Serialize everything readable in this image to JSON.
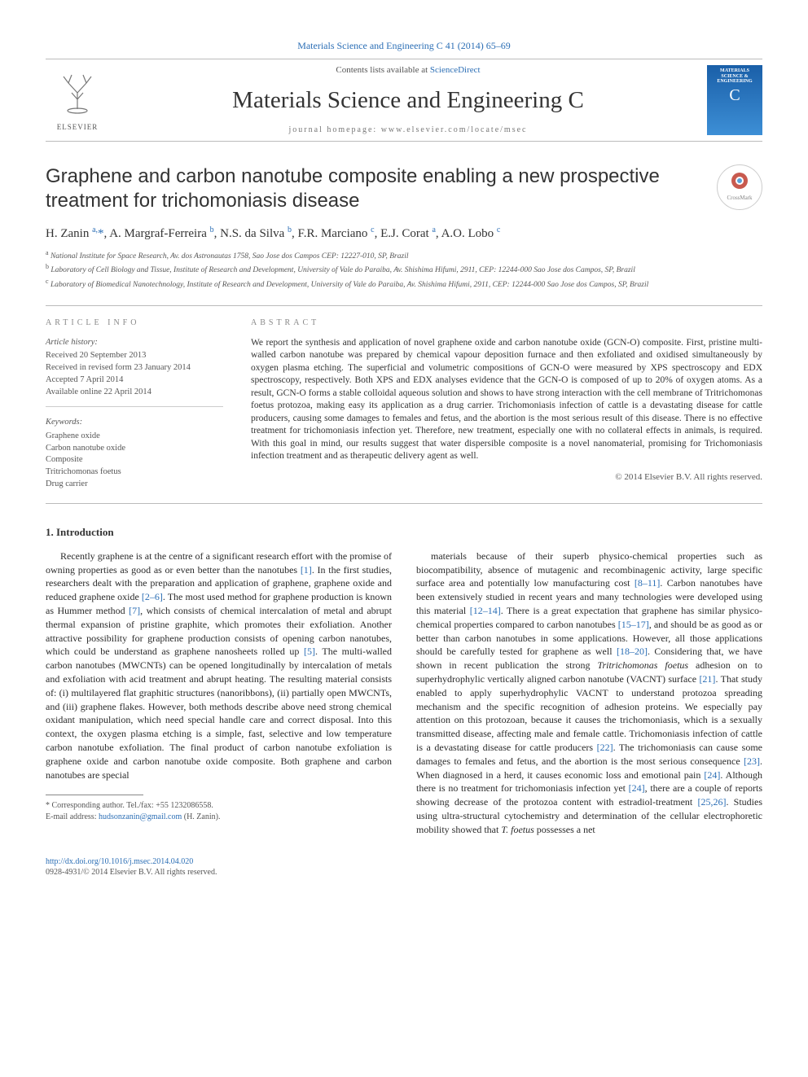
{
  "header": {
    "journal_citation": "Materials Science and Engineering C 41 (2014) 65–69",
    "contents_prefix": "Contents lists available at ",
    "contents_link": "ScienceDirect",
    "journal_name": "Materials Science and Engineering C",
    "homepage_label": "journal homepage: www.elsevier.com/locate/msec",
    "publisher_logo_text": "ELSEVIER",
    "cover_title_l1": "MATERIALS",
    "cover_title_l2": "SCIENCE &",
    "cover_title_l3": "ENGINEERING",
    "cover_letter": "C",
    "crossmark_label": "CrossMark"
  },
  "article": {
    "title": "Graphene and carbon nanotube composite enabling a new prospective treatment for trichomoniasis disease",
    "authors_html": "H. Zanin <sup>a,</sup><span class='corr'>*</span>, A. Margraf-Ferreira <sup>b</sup>, N.S. da Silva <sup>b</sup>, F.R. Marciano <sup>c</sup>, E.J. Corat <sup>a</sup>, A.O. Lobo <sup>c</sup>",
    "affiliations": [
      {
        "tag": "a",
        "text": "National Institute for Space Research, Av. dos Astronautas 1758, Sao Jose dos Campos CEP: 12227-010, SP, Brazil"
      },
      {
        "tag": "b",
        "text": "Laboratory of Cell Biology and Tissue, Institute of Research and Development, University of Vale do Paraiba, Av. Shishima Hifumi, 2911, CEP: 12244-000 Sao Jose dos Campos, SP, Brazil"
      },
      {
        "tag": "c",
        "text": "Laboratory of Biomedical Nanotechnology, Institute of Research and Development, University of Vale do Paraiba, Av. Shishima Hifumi, 2911, CEP: 12244-000 Sao Jose dos Campos, SP, Brazil"
      }
    ]
  },
  "meta": {
    "info_label": "ARTICLE INFO",
    "abstract_label": "ABSTRACT",
    "history_label": "Article history:",
    "history": [
      "Received 20 September 2013",
      "Received in revised form 23 January 2014",
      "Accepted 7 April 2014",
      "Available online 22 April 2014"
    ],
    "keywords_label": "Keywords:",
    "keywords": [
      "Graphene oxide",
      "Carbon nanotube oxide",
      "Composite",
      "Tritrichomonas foetus",
      "Drug carrier"
    ],
    "abstract": "We report the synthesis and application of novel graphene oxide and carbon nanotube oxide (GCN-O) composite. First, pristine multi-walled carbon nanotube was prepared by chemical vapour deposition furnace and then exfoliated and oxidised simultaneously by oxygen plasma etching. The superficial and volumetric compositions of GCN-O were measured by XPS spectroscopy and EDX spectroscopy, respectively. Both XPS and EDX analyses evidence that the GCN-O is composed of up to 20% of oxygen atoms. As a result, GCN-O forms a stable colloidal aqueous solution and shows to have strong interaction with the cell membrane of Tritrichomonas foetus protozoa, making easy its application as a drug carrier. Trichomoniasis infection of cattle is a devastating disease for cattle producers, causing some damages to females and fetus, and the abortion is the most serious result of this disease. There is no effective treatment for trichomoniasis infection yet. Therefore, new treatment, especially one with no collateral effects in animals, is required. With this goal in mind, our results suggest that water dispersible composite is a novel nanomaterial, promising for Trichomoniasis infection treatment and as therapeutic delivery agent as well.",
    "copyright": "© 2014 Elsevier B.V. All rights reserved."
  },
  "body": {
    "section_title": "1. Introduction",
    "para1": "Recently graphene is at the centre of a significant research effort with the promise of owning properties as good as or even better than the nanotubes [1]. In the first studies, researchers dealt with the preparation and application of graphene, graphene oxide and reduced graphene oxide [2–6]. The most used method for graphene production is known as Hummer method [7], which consists of chemical intercalation of metal and abrupt thermal expansion of pristine graphite, which promotes their exfoliation. Another attractive possibility for graphene production consists of opening carbon nanotubes, which could be understand as graphene nanosheets rolled up [5]. The multi-walled carbon nanotubes (MWCNTs) can be opened longitudinally by intercalation of metals and exfoliation with acid treatment and abrupt heating. The resulting material consists of: (i) multilayered flat graphitic structures (nanoribbons), (ii) partially open MWCNTs, and (iii) graphene flakes. However, both methods describe above need strong chemical oxidant manipulation, which need special handle care and correct disposal. Into this context, the oxygen plasma etching is a simple, fast, selective and low temperature carbon nanotube exfoliation. The final product of carbon nanotube exfoliation is graphene oxide and carbon nanotube oxide composite. Both graphene and carbon nanotubes are special",
    "para2": "materials because of their superb physico-chemical properties such as biocompatibility, absence of mutagenic and recombinagenic activity, large specific surface area and potentially low manufacturing cost [8–11]. Carbon nanotubes have been extensively studied in recent years and many technologies were developed using this material [12–14]. There is a great expectation that graphene has similar physico-chemical properties compared to carbon nanotubes [15–17], and should be as good as or better than carbon nanotubes in some applications. However, all those applications should be carefully tested for graphene as well [18–20]. Considering that, we have shown in recent publication the strong Tritrichomonas foetus adhesion on to superhydrophylic vertically aligned carbon nanotube (VACNT) surface [21]. That study enabled to apply superhydrophylic VACNT to understand protozoa spreading mechanism and the specific recognition of adhesion proteins. We especially pay attention on this protozoan, because it causes the trichomoniasis, which is a sexually transmitted disease, affecting male and female cattle. Trichomoniasis infection of cattle is a devastating disease for cattle producers [22]. The trichomoniasis can cause some damages to females and fetus, and the abortion is the most serious consequence [23]. When diagnosed in a herd, it causes economic loss and emotional pain [24]. Although there is no treatment for trichomoniasis infection yet [24], there are a couple of reports showing decrease of the protozoa content with estradiol-treatment [25,26]. Studies using ultra-structural cytochemistry and determination of the cellular electrophoretic mobility showed that T. foetus possesses a net"
  },
  "footnote": {
    "corr_label": "* Corresponding author. Tel./fax: +55 1232086558.",
    "email_label": "E-mail address: ",
    "email": "hudsonzanin@gmail.com",
    "email_suffix": " (H. Zanin)."
  },
  "footer": {
    "doi": "http://dx.doi.org/10.1016/j.msec.2014.04.020",
    "issn_line": "0928-4931/© 2014 Elsevier B.V. All rights reserved."
  },
  "refs": {
    "r1": "[1]",
    "r2_6": "[2–6]",
    "r7": "[7]",
    "r5": "[5]",
    "r8_11": "[8–11]",
    "r12_14": "[12–14]",
    "r15_17": "[15–17]",
    "r18_20": "[18–20]",
    "r21": "[21]",
    "r22": "[22]",
    "r23": "[23]",
    "r24": "[24]",
    "r25_26": "[25,26]"
  },
  "colors": {
    "link": "#2b6eb5",
    "text": "#2a2a2a",
    "muted": "#555555",
    "border": "#bbbbbb",
    "cover_top": "#1a5fa8",
    "cover_bottom": "#3d8fd6"
  }
}
